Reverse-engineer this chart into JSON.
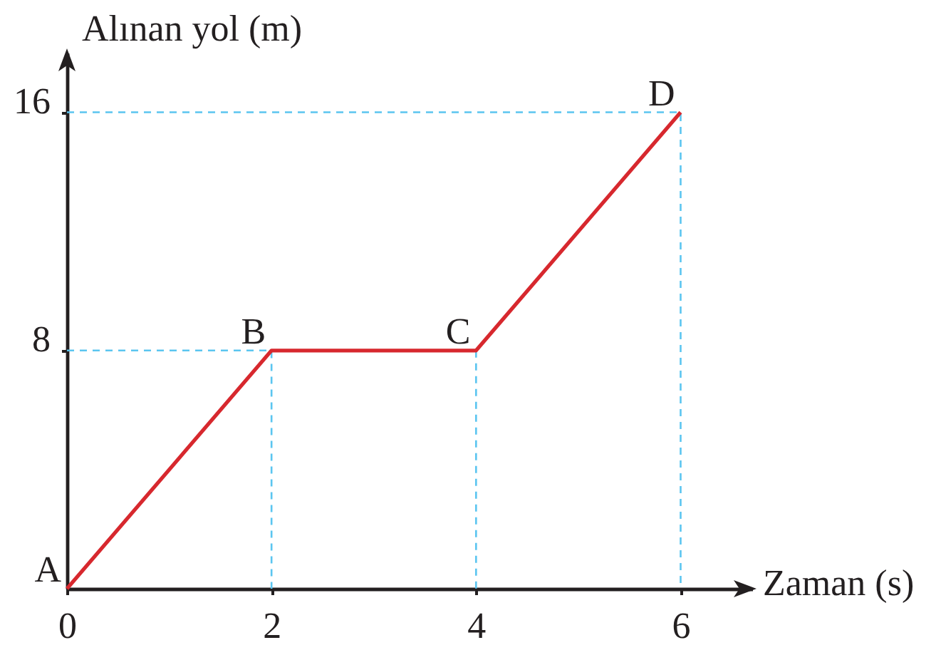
{
  "chart_data": {
    "type": "line",
    "xlabel": "Zaman (s)",
    "ylabel": "Alınan yol (m)",
    "series": [
      {
        "x": [
          0,
          2,
          2
        ],
        "values": [
          8,
          8,
          0
        ],
        "color": "#5bc5f0",
        "line_style": "dashed"
      },
      {
        "x": [
          4,
          4
        ],
        "values": [
          8,
          0
        ],
        "color": "#5bc5f0",
        "line_style": "dashed"
      },
      {
        "x": [
          0,
          6,
          6
        ],
        "values": [
          16,
          16,
          0
        ],
        "color": "#5bc5f0",
        "line_style": "dashed"
      },
      {
        "x": [
          0,
          2,
          4,
          6
        ],
        "values": [
          0,
          8,
          8,
          16
        ],
        "color": "#d7282e"
      }
    ],
    "xlim": [
      0,
      6.7
    ],
    "ylim": [
      0,
      18
    ],
    "xticks": [
      0,
      2,
      4,
      6
    ],
    "yticks": [
      8,
      16
    ],
    "annotations": [
      {
        "text": "A",
        "x": 0,
        "y": 0
      },
      {
        "text": "B",
        "x": 2,
        "y": 8
      },
      {
        "text": "C",
        "x": 4,
        "y": 8
      },
      {
        "text": "D",
        "x": 6,
        "y": 16
      }
    ]
  }
}
